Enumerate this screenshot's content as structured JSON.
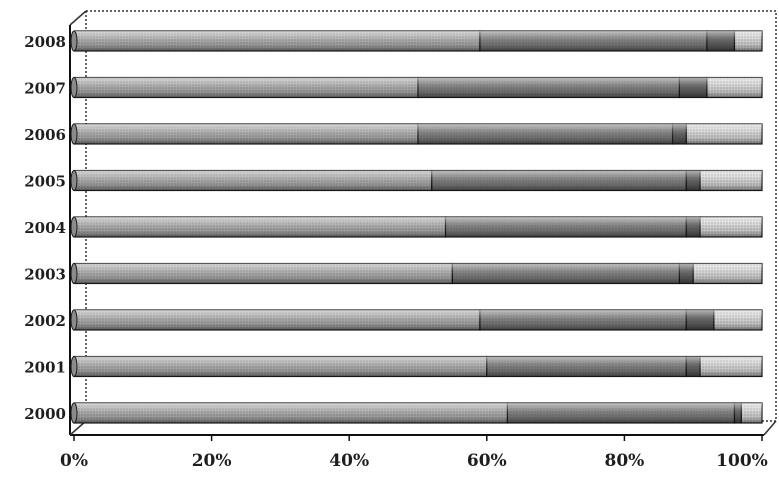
{
  "chart_data": {
    "type": "bar",
    "orientation": "horizontal",
    "stacked": true,
    "percent": true,
    "title": "",
    "xlabel": "",
    "ylabel": "",
    "xlim": [
      0,
      100
    ],
    "x_ticks": [
      "0%",
      "20%",
      "40%",
      "60%",
      "80%",
      "100%"
    ],
    "categories": [
      "2000",
      "2001",
      "2002",
      "2003",
      "2004",
      "2005",
      "2006",
      "2007",
      "2008"
    ],
    "series": [
      {
        "values": [
          63,
          60,
          59,
          55,
          54,
          52,
          50,
          50,
          59
        ]
      },
      {
        "values": [
          33,
          29,
          30,
          33,
          35,
          37,
          37,
          38,
          33
        ]
      },
      {
        "values": [
          1,
          2,
          4,
          2,
          2,
          2,
          2,
          4,
          4
        ]
      },
      {
        "values": [
          3,
          9,
          7,
          10,
          9,
          9,
          11,
          8,
          4
        ]
      }
    ],
    "grid": false,
    "legend": "none",
    "colors": [
      "#a9a9a9",
      "#7a7a7a",
      "#5c5c5c",
      "#d4d4d4"
    ]
  }
}
